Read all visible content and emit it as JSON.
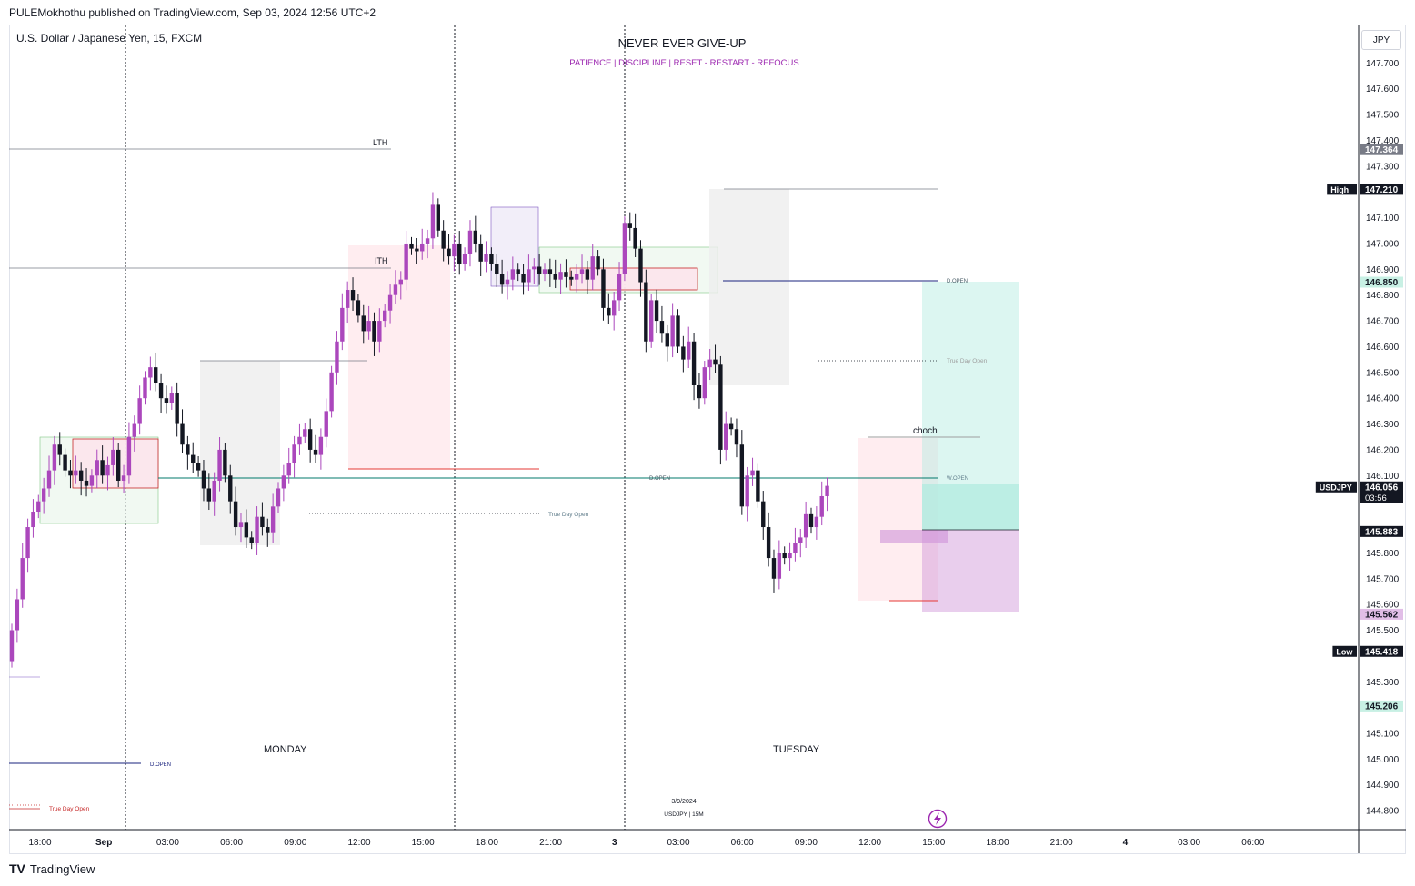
{
  "header": {
    "published_line": "PULEMokhothu published on TradingView.com, Sep 03, 2024 12:56 UTC+2",
    "symbol_line": "U.S. Dollar / Japanese Yen, 15, FXCM",
    "currency_button": "JPY"
  },
  "annotations": {
    "motto": "NEVER EVER GIVE-UP",
    "motto_sub": "PATIENCE   |   DISCIPLINE   |   RESET - RESTART - REFOCUS",
    "lth": "LTH",
    "ith": "ITH",
    "choch": "choch",
    "d_open": "D.OPEN",
    "w_open": "W.OPEN",
    "true_day_open": "True Day Open",
    "monday": "MONDAY",
    "tuesday": "TUESDAY",
    "stamp_date": "3/9/2024",
    "stamp_symbol": "USDJPY  |  15M"
  },
  "footer": {
    "brand": "TradingView",
    "brand_logo": "TV"
  },
  "chart_data": {
    "type": "candlestick",
    "symbol": "USDJPY",
    "timeframe": "15",
    "ylim": [
      144.7,
      147.82
    ],
    "y_ticks": [
      "147.700",
      "147.600",
      "147.500",
      "147.400",
      "147.300",
      "147.100",
      "147.000",
      "146.900",
      "146.800",
      "146.700",
      "146.600",
      "146.500",
      "146.400",
      "146.300",
      "146.200",
      "146.100",
      "145.800",
      "145.700",
      "145.600",
      "145.500",
      "145.300",
      "145.200",
      "145.100",
      "145.000",
      "144.900",
      "144.800"
    ],
    "x_ticks": [
      "18:00",
      "Sep",
      "03:00",
      "06:00",
      "09:00",
      "12:00",
      "15:00",
      "18:00",
      "21:00",
      "3",
      "03:00",
      "06:00",
      "09:00",
      "12:00",
      "15:00",
      "18:00",
      "21:00",
      "4",
      "03:00",
      "06:00"
    ],
    "price_tags": [
      {
        "label": "",
        "value": "147.364",
        "color": "#787b86"
      },
      {
        "label": "High",
        "value": "147.210",
        "color": "#131722"
      },
      {
        "label": "",
        "value": "146.850",
        "color": "#c8f0e4"
      },
      {
        "label": "USDJPY",
        "value": "146.056",
        "sub": "03:56",
        "color": "#131722"
      },
      {
        "label": "",
        "value": "145.883",
        "color": "#131722"
      },
      {
        "label": "",
        "value": "145.562",
        "color": "#e1bee7"
      },
      {
        "label": "Low",
        "value": "145.418",
        "color": "#131722"
      },
      {
        "label": "",
        "value": "145.206",
        "color": "#c8f0e4"
      }
    ],
    "levels": {
      "LTH": 147.364,
      "ITH": 146.9,
      "D_OPEN_mon": 146.85,
      "W_OPEN": 146.08,
      "true_day_open_tue": 146.535,
      "true_day_open_mon": 145.92,
      "choch": 146.25,
      "entry": 145.883,
      "take_profit": 146.85,
      "stop_loss": 145.562
    },
    "candles_close": [
      145.5,
      145.62,
      145.78,
      145.9,
      145.96,
      146.0,
      146.05,
      146.12,
      146.22,
      146.18,
      146.12,
      146.1,
      146.12,
      146.08,
      146.06,
      146.1,
      146.16,
      146.1,
      146.14,
      146.2,
      146.08,
      146.1,
      146.25,
      146.3,
      146.4,
      146.48,
      146.52,
      146.46,
      146.4,
      146.38,
      146.42,
      146.3,
      146.22,
      146.18,
      146.15,
      146.12,
      146.05,
      146.0,
      146.08,
      146.2,
      146.1,
      146.0,
      145.9,
      145.92,
      145.86,
      145.84,
      145.94,
      145.9,
      145.88,
      145.98,
      146.05,
      146.1,
      146.15,
      146.22,
      146.25,
      146.28,
      146.2,
      146.18,
      146.25,
      146.35,
      146.5,
      146.62,
      146.75,
      146.82,
      146.78,
      146.72,
      146.66,
      146.7,
      146.62,
      146.7,
      146.74,
      146.8,
      146.84,
      146.86,
      147.0,
      146.98,
      146.97,
      147.0,
      147.02,
      147.15,
      147.05,
      146.98,
      146.95,
      147.0,
      146.92,
      146.96,
      147.05,
      147.0,
      146.93,
      146.96,
      146.92,
      146.88,
      146.84,
      146.86,
      146.9,
      146.88,
      146.85,
      146.9,
      146.91,
      146.88,
      146.9,
      146.88,
      146.86,
      146.89,
      146.87,
      146.86,
      146.88,
      146.9,
      146.86,
      146.95,
      146.9,
      146.75,
      146.72,
      146.78,
      146.88,
      147.08,
      147.06,
      146.98,
      146.85,
      146.62,
      146.78,
      146.7,
      146.65,
      146.6,
      146.72,
      146.6,
      146.55,
      146.62,
      146.45,
      146.4,
      146.52,
      146.55,
      146.53,
      146.2,
      146.3,
      146.28,
      146.22,
      145.98,
      146.1,
      146.12,
      146.0,
      145.9,
      145.78,
      145.7,
      145.8,
      145.78,
      145.8,
      145.84,
      145.86,
      145.95,
      145.9,
      145.94,
      146.02,
      146.06
    ]
  }
}
